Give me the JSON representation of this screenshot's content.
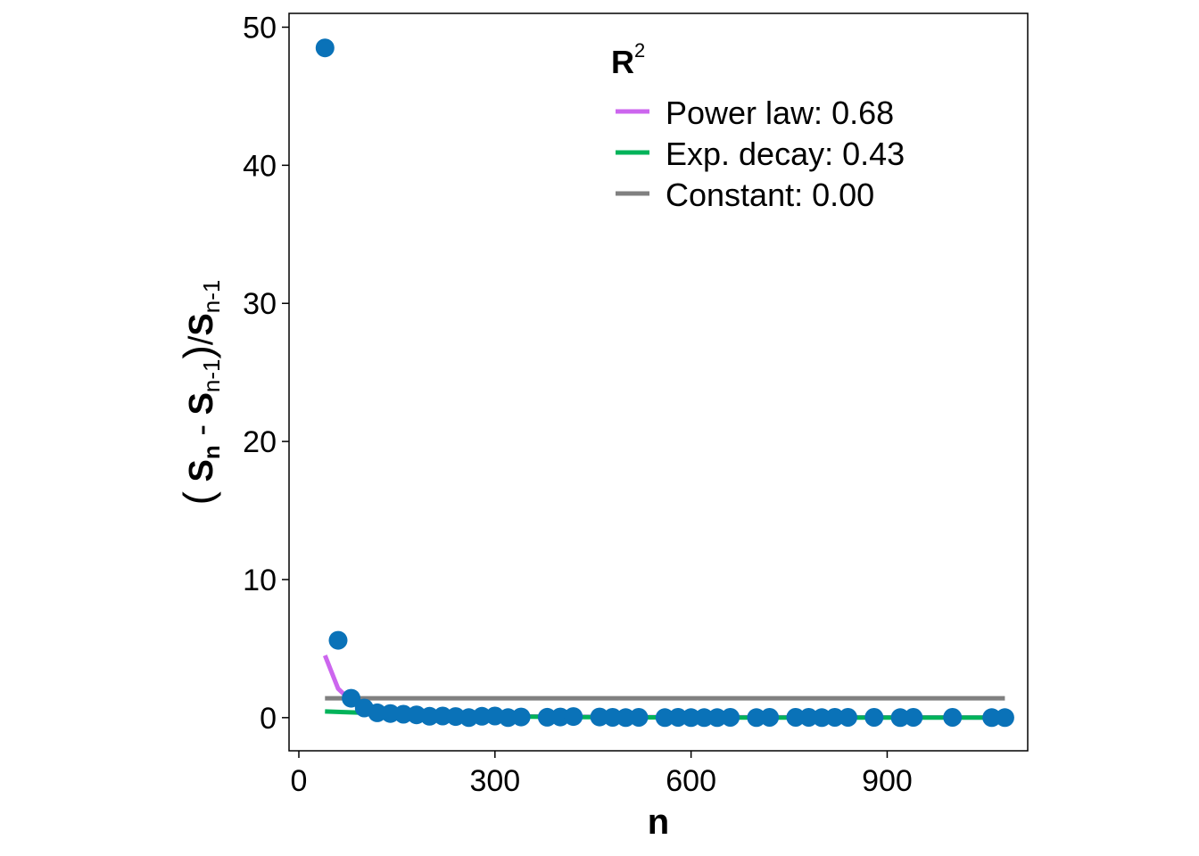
{
  "chart_data": {
    "type": "scatter",
    "xlabel": "n",
    "ylabel": {
      "s": "S",
      "sub_n": "n",
      "sub_n1": "n-1",
      "minus": "-",
      "slash": "/"
    },
    "xlim": [
      -15,
      1115
    ],
    "ylim": [
      -2.4,
      51.0
    ],
    "xticks": [
      0,
      300,
      600,
      900
    ],
    "yticks": [
      0,
      10,
      20,
      30,
      40,
      50
    ],
    "grid": false,
    "legend": {
      "position": "top-right",
      "title": "R",
      "title_superscript": "2",
      "entries": [
        {
          "label": "Power law: 0.68",
          "color": "#cc66ee"
        },
        {
          "label": "Exp. decay: 0.43",
          "color": "#00b35a"
        },
        {
          "label": "Constant: 0.00",
          "color": "#808080"
        }
      ]
    },
    "point_color": "#0a72b8",
    "points": {
      "x": [
        40,
        60,
        80,
        100,
        120,
        140,
        160,
        180,
        200,
        220,
        240,
        260,
        280,
        300,
        320,
        340,
        380,
        400,
        420,
        460,
        480,
        500,
        520,
        560,
        580,
        600,
        620,
        640,
        660,
        700,
        720,
        760,
        780,
        800,
        820,
        840,
        880,
        920,
        940,
        1000,
        1060,
        1080
      ],
      "y": [
        48.5,
        5.6,
        1.4,
        0.7,
        0.35,
        0.3,
        0.25,
        0.2,
        0.1,
        0.12,
        0.08,
        0.0,
        0.1,
        0.12,
        0.0,
        0.05,
        0.03,
        0.05,
        0.08,
        0.05,
        0.02,
        0.0,
        0.02,
        0.0,
        0.02,
        0.0,
        0.0,
        0.0,
        0.02,
        0.0,
        0.02,
        0.02,
        0.02,
        0.0,
        0.02,
        0.02,
        0.02,
        0.0,
        0.02,
        0.02,
        0.0,
        0.0
      ]
    },
    "series": [
      {
        "name": "Power law",
        "color": "#cc66ee",
        "x": [
          40,
          60,
          80,
          100,
          120,
          140,
          160,
          200,
          250,
          300,
          400,
          500,
          700,
          900,
          1080
        ],
        "y": [
          4.5,
          2.1,
          1.2,
          0.8,
          0.55,
          0.42,
          0.33,
          0.22,
          0.15,
          0.11,
          0.07,
          0.05,
          0.03,
          0.02,
          0.01
        ]
      },
      {
        "name": "Exp. decay",
        "color": "#00b35a",
        "x": [
          40,
          100,
          200,
          300,
          400,
          500,
          600,
          700,
          800,
          900,
          1000,
          1080
        ],
        "y": [
          0.45,
          0.35,
          0.2,
          0.1,
          0.05,
          0.03,
          0.015,
          0.01,
          0.005,
          0.0,
          0.0,
          0.0
        ]
      },
      {
        "name": "Constant",
        "color": "#808080",
        "x": [
          40,
          1080
        ],
        "y": [
          1.4,
          1.4
        ]
      }
    ]
  }
}
